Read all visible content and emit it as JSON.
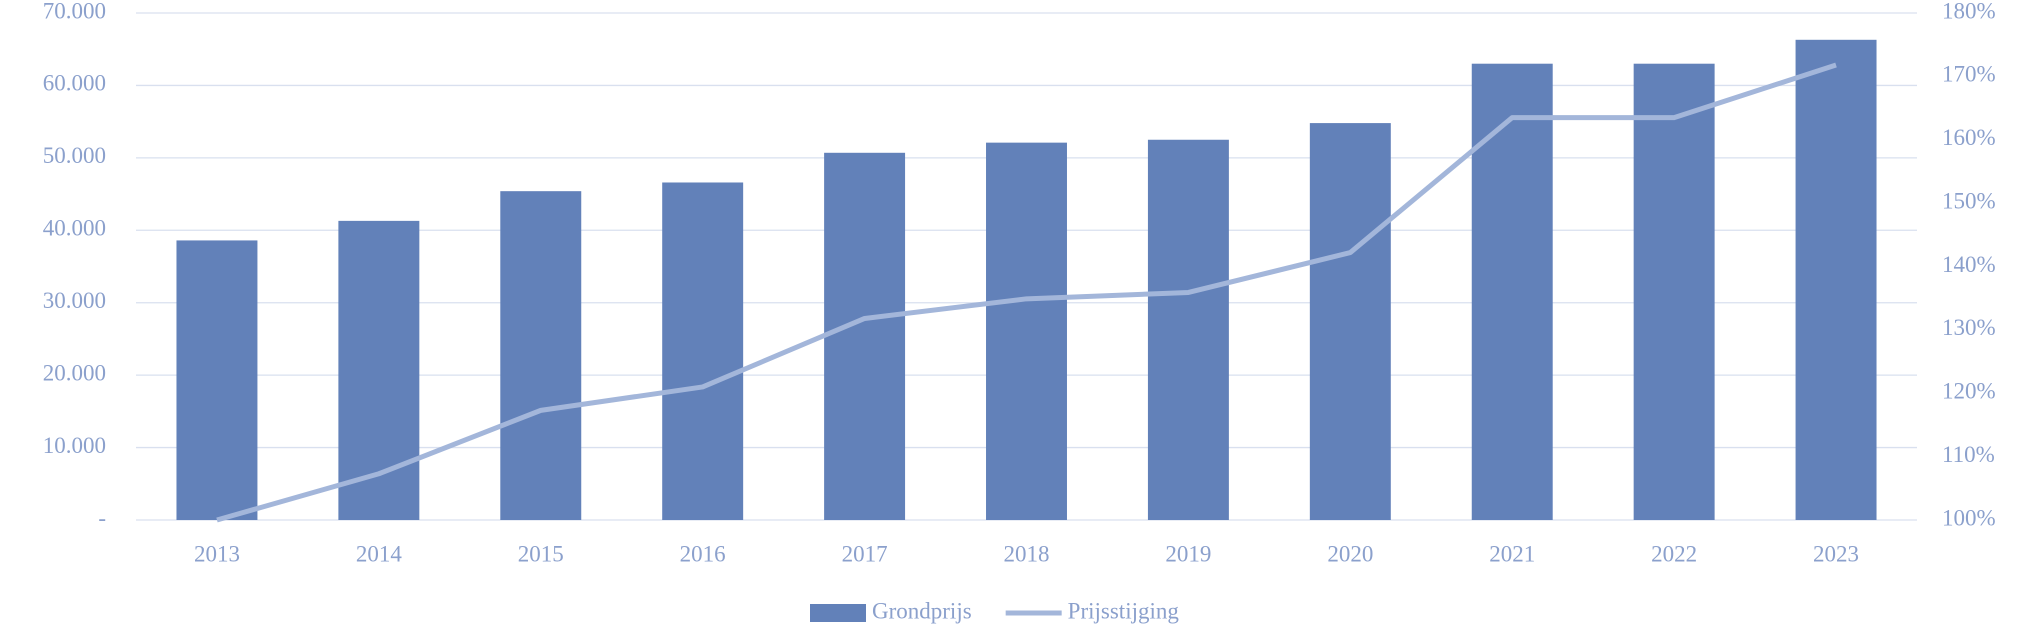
{
  "chart_data": {
    "type": "bar-line",
    "categories": [
      "2013",
      "2014",
      "2015",
      "2016",
      "2017",
      "2018",
      "2019",
      "2020",
      "2021",
      "2022",
      "2023"
    ],
    "series": [
      {
        "name": "Grondprijs",
        "type": "bar",
        "color": "#6281b9",
        "values": [
          38600,
          41300,
          45400,
          46600,
          50700,
          52100,
          52500,
          54800,
          63000,
          63000,
          66300
        ]
      },
      {
        "name": "Prijsstijging",
        "type": "line",
        "axis": "y2",
        "color": "#a3b6da",
        "values": [
          100,
          107.3,
          117.3,
          121,
          131.8,
          134.9,
          135.9,
          142.2,
          163.5,
          163.5,
          171.8
        ]
      }
    ],
    "ylim": [
      0,
      70000
    ],
    "yticks": [
      {
        "value": 0,
        "label": "-"
      },
      {
        "value": 10000,
        "label": "10.000"
      },
      {
        "value": 20000,
        "label": "20.000"
      },
      {
        "value": 30000,
        "label": "30.000"
      },
      {
        "value": 40000,
        "label": "40.000"
      },
      {
        "value": 50000,
        "label": "50.000"
      },
      {
        "value": 60000,
        "label": "60.000"
      },
      {
        "value": 70000,
        "label": "70.000"
      }
    ],
    "y2lim": [
      100,
      180
    ],
    "y2ticks": [
      {
        "value": 100,
        "label": "100%"
      },
      {
        "value": 110,
        "label": "110%"
      },
      {
        "value": 120,
        "label": "120%"
      },
      {
        "value": 130,
        "label": "130%"
      },
      {
        "value": 140,
        "label": "140%"
      },
      {
        "value": 150,
        "label": "150%"
      },
      {
        "value": 160,
        "label": "160%"
      },
      {
        "value": 170,
        "label": "170%"
      },
      {
        "value": 180,
        "label": "180%"
      }
    ],
    "grid": true,
    "legend": "bottom"
  }
}
